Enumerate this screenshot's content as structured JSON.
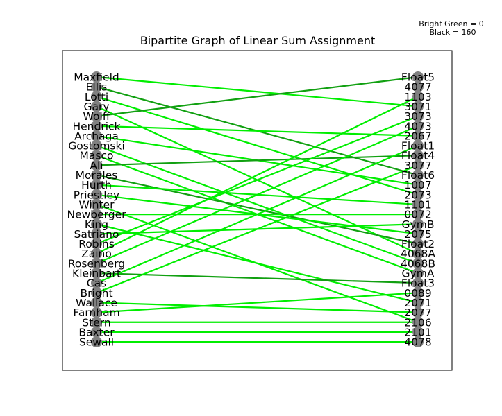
{
  "title": "Bipartite Graph of Linear Sum Assignment",
  "legend": [
    "Bright Green = 0",
    "Black = 160"
  ],
  "colors": {
    "bright": "#00ee00",
    "dark": "#11a011",
    "node": "#808080"
  },
  "left_nodes": [
    "Maxfield",
    "Ellis",
    "Lotti",
    "Gary",
    "Wolff",
    "Hendrick",
    "Archaga",
    "Gostomski",
    "Masco",
    "Ali",
    "Morales",
    "Hurth",
    "Priestley",
    "Winter",
    "Newberger",
    "King",
    "Satriano",
    "Robins",
    "Zaino",
    "Rosenberg",
    "Kleinbart",
    "Cas",
    "Bright",
    "Wallace",
    "Farnham",
    "Stern",
    "Baxter",
    "Sewall"
  ],
  "right_nodes": [
    "Float5",
    "4077",
    "1103",
    "3071",
    "3073",
    "4073",
    "2067",
    "Float1",
    "Float4",
    "3077",
    "Float6",
    "1007",
    "2073",
    "1101",
    "0072",
    "GymB",
    "2075",
    "Float2",
    "4068A",
    "4068B",
    "GymA",
    "Float3",
    "0089",
    "2071",
    "2077",
    "2106",
    "2101",
    "4078"
  ],
  "edges": [
    {
      "from": "Maxfield",
      "to": "3071",
      "cost": 0
    },
    {
      "from": "Ellis",
      "to": "Float6",
      "cost": 160
    },
    {
      "from": "Lotti",
      "to": "2073",
      "cost": 0
    },
    {
      "from": "Gary",
      "to": "4068A",
      "cost": 0
    },
    {
      "from": "Wolff",
      "to": "Float5",
      "cost": 160
    },
    {
      "from": "Hendrick",
      "to": "2067",
      "cost": 0
    },
    {
      "from": "Archaga",
      "to": "1007",
      "cost": 0
    },
    {
      "from": "Gostomski",
      "to": "4068B",
      "cost": 0
    },
    {
      "from": "Masco",
      "to": "GymA",
      "cost": 0
    },
    {
      "from": "Ali",
      "to": "Float4",
      "cost": 160
    },
    {
      "from": "Morales",
      "to": "Float2",
      "cost": 160
    },
    {
      "from": "Hurth",
      "to": "1101",
      "cost": 0
    },
    {
      "from": "Priestley",
      "to": "2075",
      "cost": 0
    },
    {
      "from": "Winter",
      "to": "2106",
      "cost": 0
    },
    {
      "from": "Newberger",
      "to": "0072",
      "cost": 0
    },
    {
      "from": "King",
      "to": "2071",
      "cost": 0
    },
    {
      "from": "Satriano",
      "to": "GymB",
      "cost": 0
    },
    {
      "from": "Robins",
      "to": "3073",
      "cost": 0
    },
    {
      "from": "Zaino",
      "to": "1103",
      "cost": 0
    },
    {
      "from": "Rosenberg",
      "to": "4073",
      "cost": 0
    },
    {
      "from": "Kleinbart",
      "to": "Float3",
      "cost": 160
    },
    {
      "from": "Cas",
      "to": "Float1",
      "cost": 0
    },
    {
      "from": "Bright",
      "to": "3077",
      "cost": 0
    },
    {
      "from": "Wallace",
      "to": "2077",
      "cost": 0
    },
    {
      "from": "Farnham",
      "to": "0089",
      "cost": 0
    },
    {
      "from": "Stern",
      "to": "2106",
      "cost": 0
    },
    {
      "from": "Baxter",
      "to": "2101",
      "cost": 0
    },
    {
      "from": "Sewall",
      "to": "4078",
      "cost": 0
    }
  ]
}
